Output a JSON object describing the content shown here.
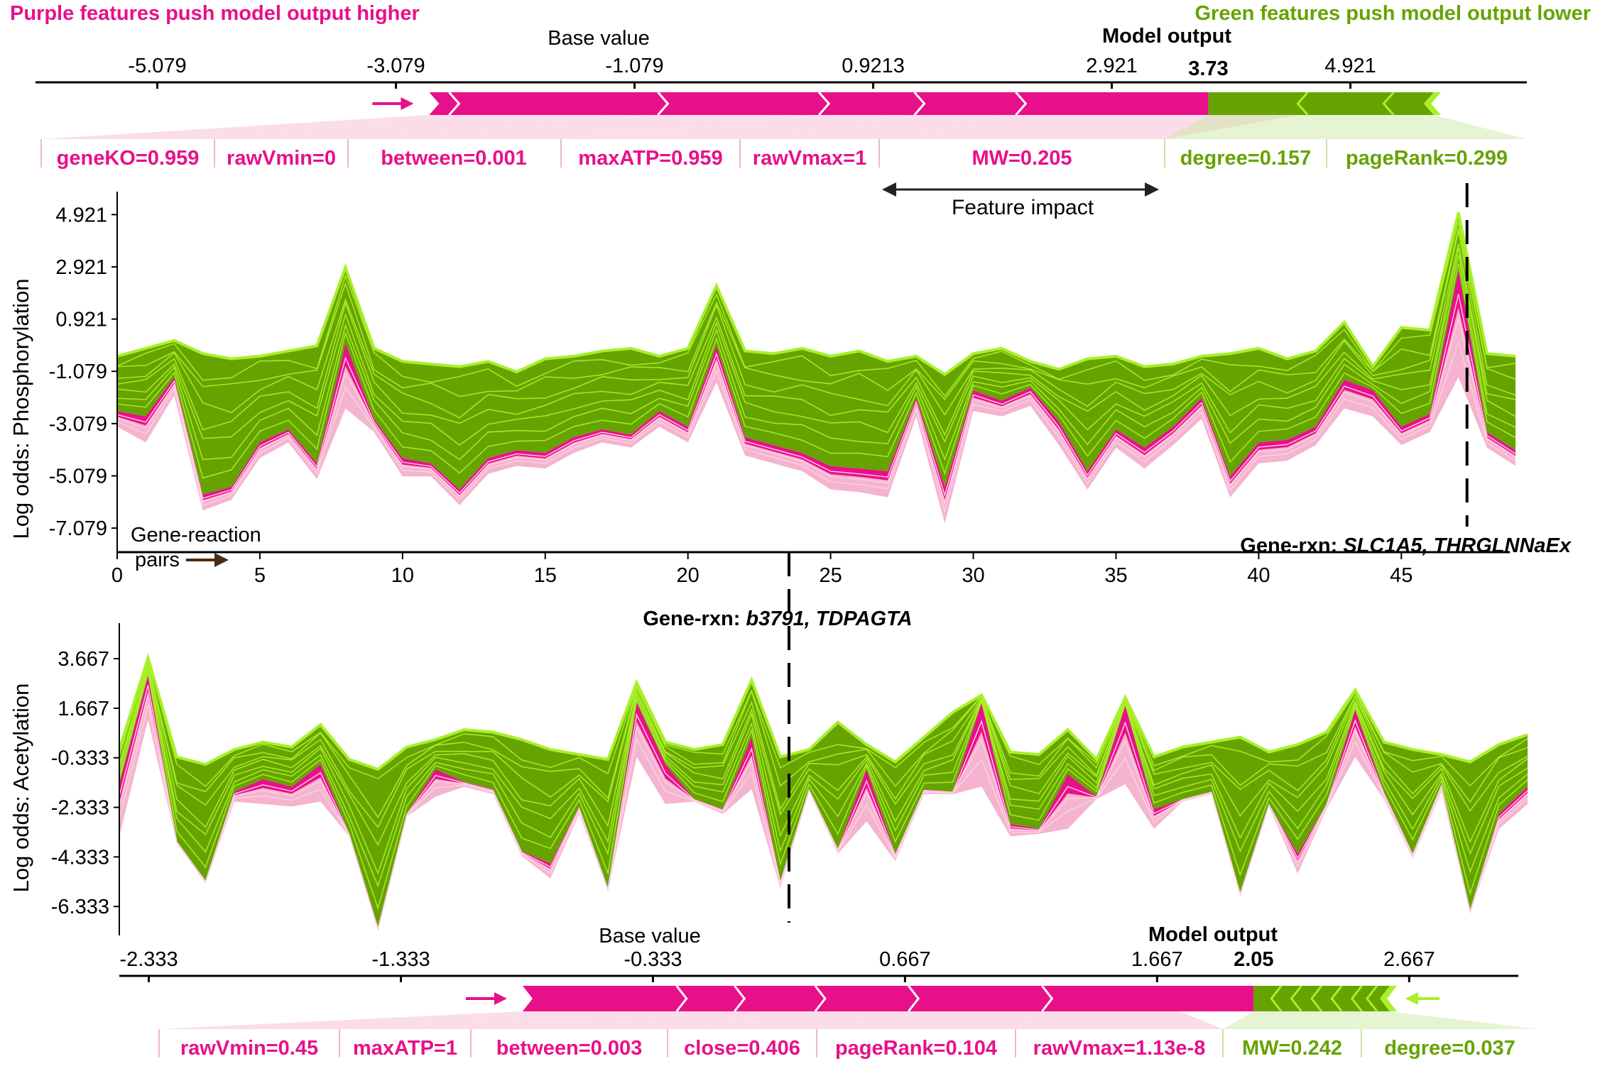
{
  "colors": {
    "pink": "#e8108a",
    "light_pink": "#f4b4cf",
    "green": "#66a300",
    "light_green": "#a8f028",
    "arrow_brown": "#4a2d14"
  },
  "header": {
    "left_caption": "Purple features push model output higher",
    "right_caption": "Green features push model output lower"
  },
  "legend": {
    "feature_impact": "Feature impact"
  },
  "chart_data": [
    {
      "type": "force",
      "id": "top_force",
      "base_value_label": "Base value",
      "model_output_label": "Model output",
      "model_output_value": "3.73",
      "model_output": 3.73,
      "base_value": -1.079,
      "xlim": [
        -6.1,
        6.4
      ],
      "ticks": [
        -5.079,
        -3.079,
        -1.079,
        0.9213,
        2.921,
        4.921
      ],
      "tick_labels": [
        "-5.079",
        "-3.079",
        "-1.079",
        "0.9213",
        "2.921",
        "4.921"
      ],
      "positive_segments": [
        -2.8,
        -2.55,
        -0.8,
        0.55,
        1.35,
        2.2,
        4.48
      ],
      "negative_segments": [
        5.62,
        5.2,
        4.48
      ],
      "labels": [
        {
          "text": "geneKO=0.959",
          "color": "pink"
        },
        {
          "text": "rawVmin=0",
          "color": "pink"
        },
        {
          "text": "between=0.001",
          "color": "pink"
        },
        {
          "text": "maxATP=0.959",
          "color": "pink"
        },
        {
          "text": "rawVmax=1",
          "color": "pink"
        },
        {
          "text": "MW=0.205",
          "color": "pink"
        },
        {
          "text": "degree=0.157",
          "color": "green"
        },
        {
          "text": "pageRank=0.299",
          "color": "green"
        }
      ]
    },
    {
      "type": "area",
      "id": "phospho",
      "ylabel": "Log odds: Phosphorylation",
      "yticks": [
        4.921,
        2.921,
        0.921,
        -1.079,
        -3.079,
        -5.079,
        -7.079
      ],
      "ytick_labels": [
        "4.921",
        "2.921",
        "0.921",
        "-1.079",
        "-3.079",
        "-5.079",
        "-7.079"
      ],
      "ylim": [
        -8.0,
        5.8
      ],
      "xticks": [
        0,
        5,
        10,
        15,
        20,
        25,
        30,
        35,
        40,
        45
      ],
      "xtick_labels": [
        "0",
        "5",
        "10",
        "15",
        "20",
        "25",
        "30",
        "35",
        "40",
        "45"
      ],
      "xlim": [
        0,
        48.8
      ],
      "top": [
        -0.5,
        -0.2,
        0.1,
        -0.4,
        -0.6,
        -0.5,
        -0.3,
        -0.1,
        2.9,
        -0.2,
        -0.7,
        -0.8,
        -0.9,
        -0.7,
        -1.1,
        -0.6,
        -0.5,
        -0.3,
        -0.2,
        -0.5,
        -0.2,
        2.2,
        -0.3,
        -0.4,
        -0.2,
        -0.5,
        -0.3,
        -0.7,
        -0.5,
        -1.2,
        -0.4,
        -0.2,
        -0.7,
        -1.0,
        -0.6,
        -0.5,
        -0.9,
        -0.8,
        -0.5,
        -0.4,
        -0.2,
        -0.6,
        -0.3,
        0.8,
        -0.9,
        0.6,
        0.5,
        5.0,
        -0.4,
        -0.5
      ],
      "output": [
        -2.6,
        -2.8,
        -1.3,
        -5.8,
        -5.5,
        -3.8,
        -3.3,
        -4.6,
        0.0,
        -2.9,
        -4.4,
        -4.6,
        -5.6,
        -4.4,
        -4.1,
        -4.2,
        -3.6,
        -3.3,
        -3.5,
        -2.6,
        -3.2,
        -0.1,
        -3.6,
        -3.9,
        -4.2,
        -4.7,
        -4.8,
        -4.9,
        -2.1,
        -5.5,
        -1.8,
        -2.2,
        -1.7,
        -3.0,
        -4.9,
        -3.3,
        -4.0,
        -3.2,
        -2.1,
        -5.1,
        -3.8,
        -3.7,
        -3.2,
        -1.4,
        -1.8,
        -3.2,
        -2.7,
        2.8,
        -3.4,
        -4.1
      ],
      "bottom": [
        -3.2,
        -3.8,
        -2.0,
        -6.4,
        -6.0,
        -4.4,
        -3.8,
        -5.2,
        -2.5,
        -3.4,
        -5.1,
        -5.1,
        -6.2,
        -5.0,
        -4.7,
        -4.8,
        -4.2,
        -3.8,
        -4.0,
        -3.2,
        -3.8,
        -1.5,
        -4.3,
        -4.6,
        -4.9,
        -5.6,
        -5.7,
        -5.9,
        -2.8,
        -6.9,
        -2.6,
        -2.8,
        -2.4,
        -3.9,
        -5.6,
        -4.0,
        -4.8,
        -3.9,
        -2.9,
        -5.9,
        -4.6,
        -4.5,
        -3.9,
        -2.5,
        -2.8,
        -3.9,
        -3.4,
        -1.3,
        -4.0,
        -4.7
      ],
      "annotation": {
        "index": 47.3,
        "prefix": "Gene-rxn: ",
        "name": "SLC1A5, THRGLNNaEx"
      },
      "pairs_label_line1": "Gene-reaction",
      "pairs_label_line2": "pairs"
    },
    {
      "type": "area",
      "id": "acetyl",
      "ylabel": "Log odds: Acetylation",
      "yticks": [
        3.667,
        1.667,
        -0.333,
        -2.333,
        -4.333,
        -6.333
      ],
      "ytick_labels": [
        "3.667",
        "1.667",
        "-0.333",
        "-2.333",
        "-4.333",
        "-6.333"
      ],
      "ylim": [
        -7.5,
        5.1
      ],
      "xlim": [
        0,
        48.8
      ],
      "top": [
        0.0,
        3.7,
        -0.3,
        -0.6,
        0.0,
        0.3,
        0.1,
        1.0,
        -0.4,
        -0.8,
        0.1,
        0.4,
        0.8,
        0.7,
        0.4,
        0.0,
        -0.2,
        -0.4,
        2.7,
        0.3,
        0.0,
        0.2,
        2.8,
        -0.3,
        0.0,
        1.1,
        0.2,
        -0.5,
        0.5,
        1.5,
        2.2,
        -0.1,
        -0.2,
        0.8,
        -0.4,
        2.1,
        -0.3,
        0.1,
        0.3,
        0.5,
        -0.1,
        0.2,
        0.7,
        2.4,
        0.3,
        0.0,
        -0.2,
        -0.5,
        0.2,
        0.6
      ],
      "output": [
        -1.4,
        3.0,
        -3.7,
        -5.3,
        -1.7,
        -1.2,
        -1.5,
        -0.6,
        -3.4,
        -7.2,
        -2.6,
        -0.8,
        -1.3,
        -1.6,
        -4.1,
        -4.6,
        -2.3,
        -5.6,
        1.9,
        -0.6,
        -2.0,
        -2.4,
        0.5,
        -5.3,
        -1.6,
        -4.0,
        -0.8,
        -4.2,
        -1.6,
        -1.7,
        1.9,
        -3.0,
        -3.2,
        -1.0,
        -1.9,
        1.8,
        -2.4,
        -2.0,
        -1.7,
        -5.8,
        -2.2,
        -4.2,
        -2.2,
        1.6,
        -1.7,
        -4.2,
        -1.4,
        -6.5,
        -2.6,
        -1.5
      ],
      "bottom": [
        -3.5,
        1.2,
        -3.8,
        -5.4,
        -2.1,
        -2.2,
        -2.3,
        -2.1,
        -3.5,
        -7.3,
        -2.7,
        -1.9,
        -1.5,
        -1.8,
        -4.3,
        -5.2,
        -2.6,
        -5.7,
        -0.3,
        -2.2,
        -2.1,
        -2.6,
        -1.6,
        -5.6,
        -1.7,
        -4.2,
        -2.9,
        -4.5,
        -1.8,
        -1.8,
        -1.5,
        -3.5,
        -3.4,
        -3.2,
        -2.0,
        -1.4,
        -3.2,
        -2.1,
        -1.8,
        -5.9,
        -2.3,
        -5.0,
        -2.4,
        -0.3,
        -2.0,
        -4.4,
        -1.7,
        -6.6,
        -3.2,
        -2.2
      ],
      "annotation": {
        "index": 23.3,
        "prefix": "Gene-rxn: ",
        "name": "b3791, TDPAGTA"
      }
    },
    {
      "type": "force",
      "id": "bottom_force",
      "base_value_label": "Base value",
      "model_output_label": "Model output",
      "model_output_value": "2.05",
      "model_output": 2.05,
      "base_value": -0.333,
      "xlim": [
        -2.45,
        3.1
      ],
      "ticks": [
        -2.333,
        -1.333,
        -0.333,
        0.667,
        1.667,
        2.667
      ],
      "tick_labels": [
        "-2.333",
        "-1.333",
        "-0.333",
        "0.667",
        "1.667",
        "2.667"
      ],
      "positive_segments": [
        -0.85,
        -0.2,
        0.03,
        0.35,
        0.72,
        1.25,
        1.76
      ],
      "negative_segments": [
        2.59,
        2.12,
        2.2,
        2.28,
        2.36,
        2.44,
        2.5
      ],
      "labels": [
        {
          "text": "rawVmin=0.45",
          "color": "pink"
        },
        {
          "text": "maxATP=1",
          "color": "pink"
        },
        {
          "text": "between=0.003",
          "color": "pink"
        },
        {
          "text": "close=0.406",
          "color": "pink"
        },
        {
          "text": "pageRank=0.104",
          "color": "pink"
        },
        {
          "text": "rawVmax=1.13e-8",
          "color": "pink"
        },
        {
          "text": "MW=0.242",
          "color": "green"
        },
        {
          "text": "degree=0.037",
          "color": "green"
        }
      ]
    }
  ]
}
